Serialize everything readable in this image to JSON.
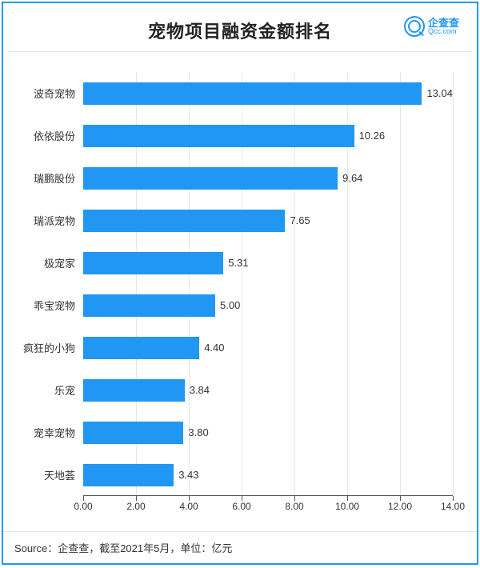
{
  "title": "宠物项目融资金额排名",
  "logo": {
    "cn": "企查查",
    "en": "Qcc.com"
  },
  "chart": {
    "type": "bar-horizontal",
    "xmax": 14.0,
    "xtick_step": 2.0,
    "xticks": [
      "0.00",
      "2.00",
      "4.00",
      "6.00",
      "8.00",
      "10.00",
      "12.00",
      "14.00"
    ],
    "bar_color": "#2196f3",
    "grid_color": "#e5e9ed",
    "background": "#ffffff",
    "label_fontsize": 13,
    "categories": [
      "波奇宠物",
      "依依股份",
      "瑞鹏股份",
      "瑞派宠物",
      "极宠家",
      "乖宝宠物",
      "疯狂的小狗",
      "乐宠",
      "宠幸宠物",
      "天地荟"
    ],
    "values": [
      13.04,
      10.26,
      9.64,
      7.65,
      5.31,
      5.0,
      4.4,
      3.84,
      3.8,
      3.43
    ],
    "value_labels": [
      "13.04",
      "10.26",
      "9.64",
      "7.65",
      "5.31",
      "5.00",
      "4.40",
      "3.84",
      "3.80",
      "3.43"
    ]
  },
  "source": "Source：企查查，截至2021年5月，单位：亿元"
}
